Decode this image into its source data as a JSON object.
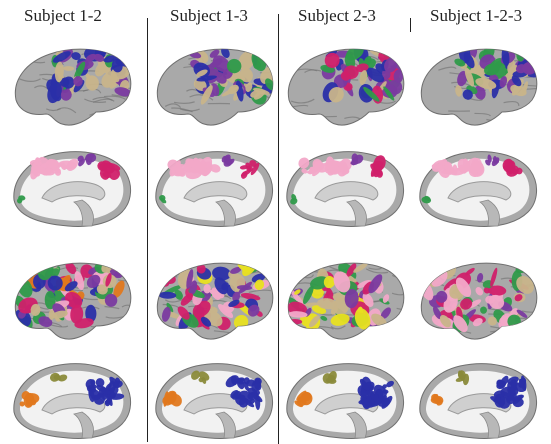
{
  "figure": {
    "column_titles": [
      "Subject 1-2",
      "Subject 1-3",
      "Subject 2-3",
      "Subject 1-2-3"
    ],
    "panels": [
      {
        "row": 1,
        "view": "lateral",
        "columns": [
          "Subject 1-2",
          "Subject 1-3",
          "Subject 2-3",
          "Subject 1-2-3"
        ]
      },
      {
        "row": 2,
        "view": "medial",
        "columns": [
          "Subject 1-2",
          "Subject 1-3",
          "Subject 2-3",
          "Subject 1-2-3"
        ]
      },
      {
        "row": 3,
        "view": "lateral",
        "columns": [
          "Subject 1-2",
          "Subject 1-3",
          "Subject 2-3",
          "Subject 1-2-3"
        ]
      },
      {
        "row": 4,
        "view": "medial",
        "columns": [
          "Subject 1-2",
          "Subject 1-3",
          "Subject 2-3",
          "Subject 1-2-3"
        ]
      }
    ],
    "colors": {
      "cortex_gray": "#a9a9a9",
      "cortex_dark": "#6f6f6f",
      "medial_white": "#f2f2f2",
      "tan": "#c8b48a",
      "blue": "#2a2fa8",
      "green": "#2f9a4a",
      "pink": "#f2a8c8",
      "magenta": "#d0206a",
      "purple": "#7a3aa0",
      "orange": "#e0781e",
      "olive": "#8a8a3a",
      "yellow": "#e8e020",
      "divider": "#222222"
    }
  }
}
